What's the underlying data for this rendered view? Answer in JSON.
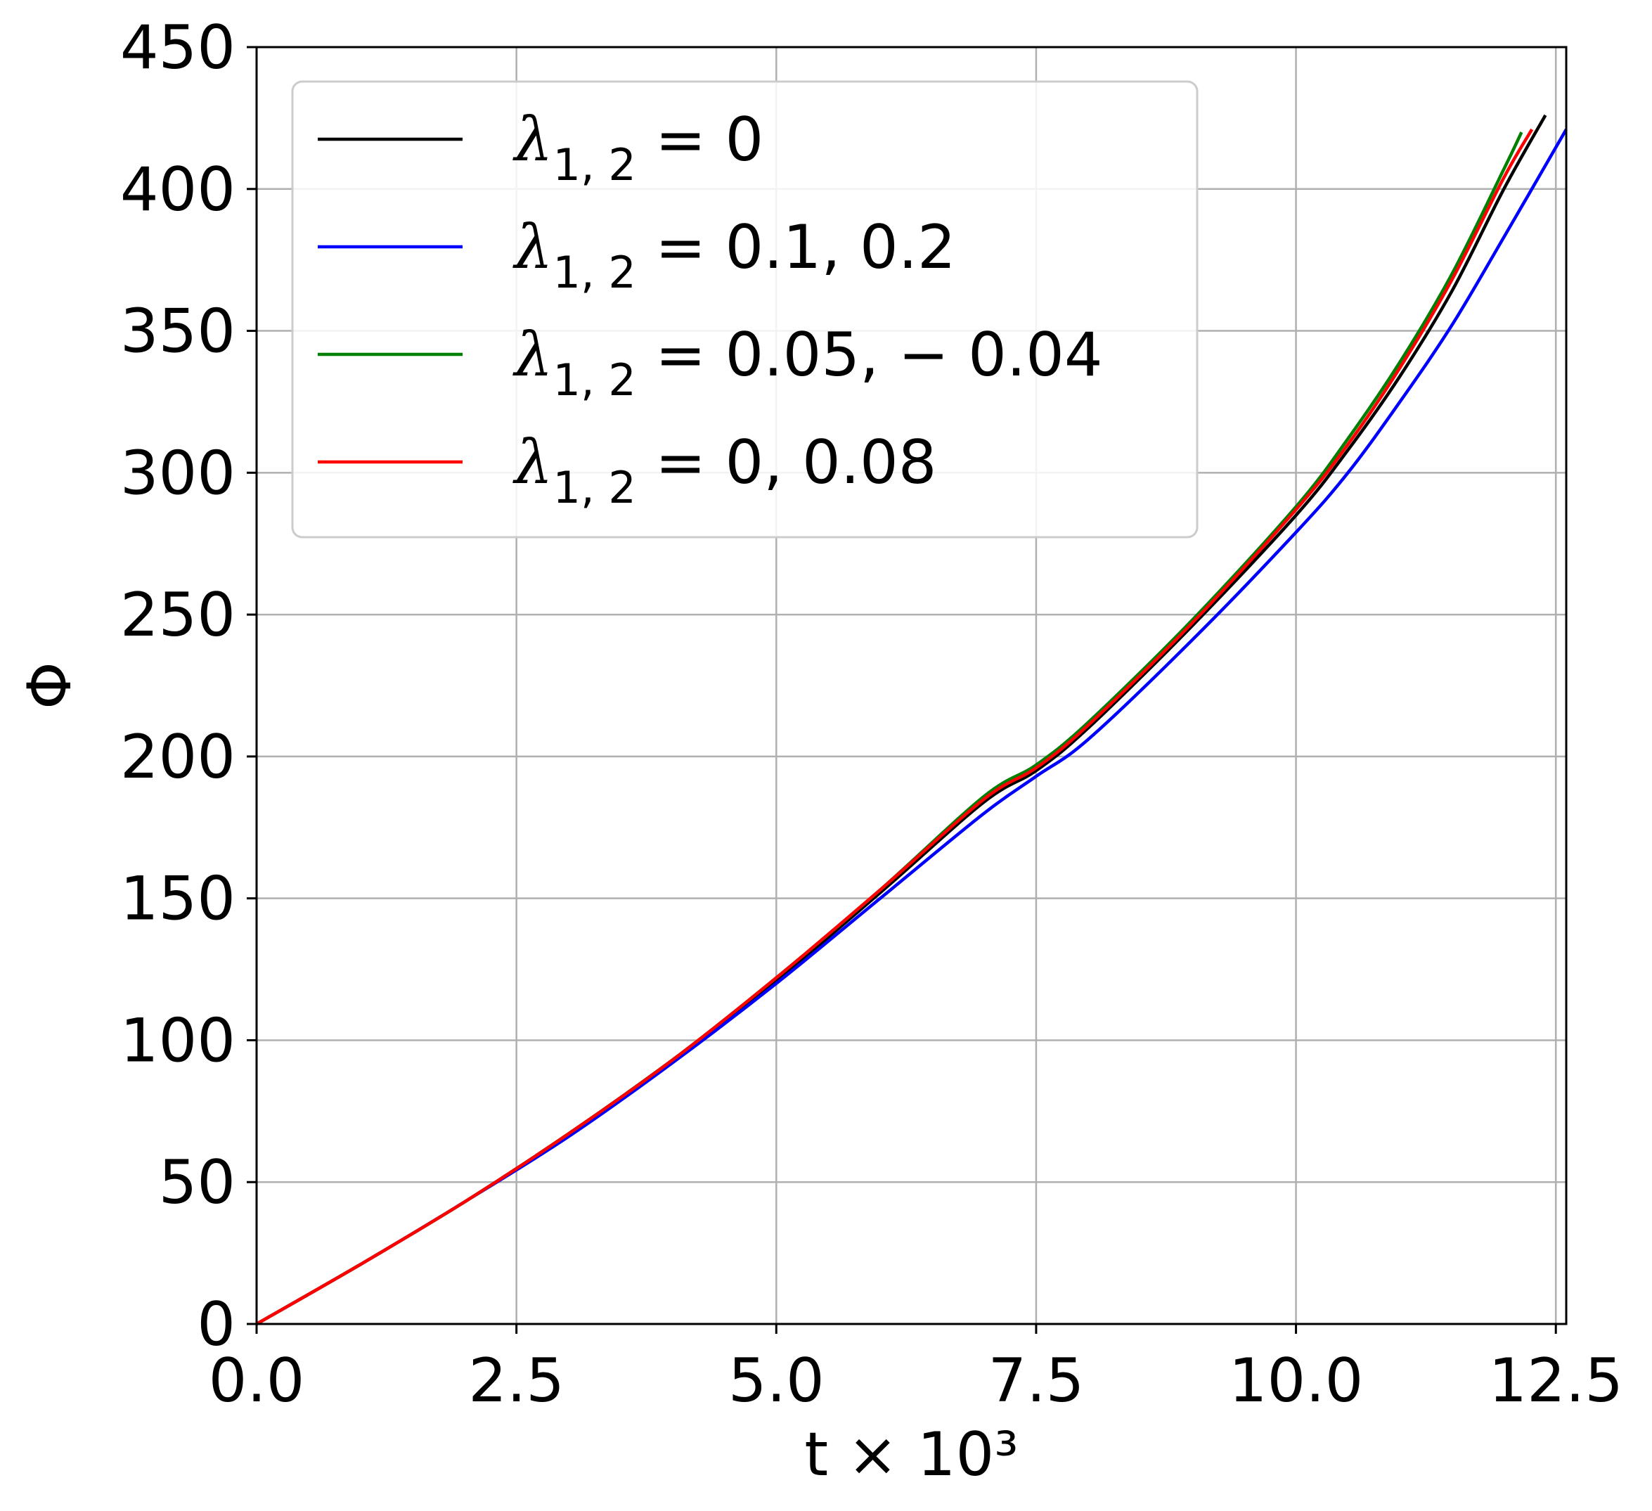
{
  "chart_data": {
    "type": "line",
    "xlabel": "t × 10³",
    "ylabel": "Φ",
    "xlim": [
      0,
      12.6
    ],
    "ylim": [
      0,
      450
    ],
    "grid": true,
    "legend_position": "top-left",
    "x_ticks": [
      "0.0",
      "2.5",
      "5.0",
      "7.5",
      "10.0",
      "12.5"
    ],
    "y_ticks": [
      "0",
      "50",
      "100",
      "150",
      "200",
      "250",
      "300",
      "350",
      "400",
      "450"
    ],
    "series": [
      {
        "name": "λ₁,₂ = 0",
        "legend_main": "λ",
        "legend_sub": "1, 2",
        "legend_rest": " = 0",
        "color": "#000000",
        "x": [
          0,
          1,
          2,
          3,
          4,
          5,
          6,
          7,
          7.5,
          8,
          9,
          10,
          10.5,
          11,
          11.5,
          12,
          12.4
        ],
        "y": [
          0,
          21,
          43,
          67,
          93,
          121,
          152,
          184,
          195,
          210,
          246,
          285,
          308,
          334,
          364,
          400,
          426
        ]
      },
      {
        "name": "λ₁,₂ = 0.1, 0.2",
        "legend_main": "λ",
        "legend_sub": "1, 2",
        "legend_rest": " = 0.1, 0.2",
        "color": "#0000ff",
        "x": [
          0,
          1,
          2,
          3,
          4,
          5,
          6,
          7,
          7.5,
          8,
          9,
          10,
          10.5,
          11,
          11.5,
          12,
          12.6
        ],
        "y": [
          0,
          21,
          43,
          66,
          92,
          120,
          150,
          180,
          193,
          206,
          241,
          279,
          300,
          325,
          352,
          383,
          421
        ]
      },
      {
        "name": "λ₁,₂ = 0.05, −0.04",
        "legend_main": "λ",
        "legend_sub": "1, 2",
        "legend_rest": " = 0.05, − 0.04",
        "color": "#008000",
        "x": [
          0,
          1,
          2,
          3,
          4,
          5,
          6,
          7,
          7.5,
          8,
          9,
          10,
          10.5,
          11,
          11.5,
          12,
          12.17
        ],
        "y": [
          0,
          21,
          43,
          67,
          93,
          122,
          153,
          186,
          197,
          212,
          248,
          288,
          312,
          339,
          370,
          407,
          420
        ]
      },
      {
        "name": "λ₁,₂ = 0, 0.08",
        "legend_main": "λ",
        "legend_sub": "1, 2",
        "legend_rest": " = 0, 0.08",
        "color": "#ff0000",
        "x": [
          0,
          1,
          2,
          3,
          4,
          5,
          6,
          7,
          7.5,
          8,
          9,
          10,
          10.5,
          11,
          11.5,
          12,
          12.27
        ],
        "y": [
          0,
          21,
          43,
          67,
          93,
          122,
          153,
          185,
          196,
          211,
          247,
          287,
          310,
          337,
          368,
          404,
          421
        ]
      }
    ]
  }
}
